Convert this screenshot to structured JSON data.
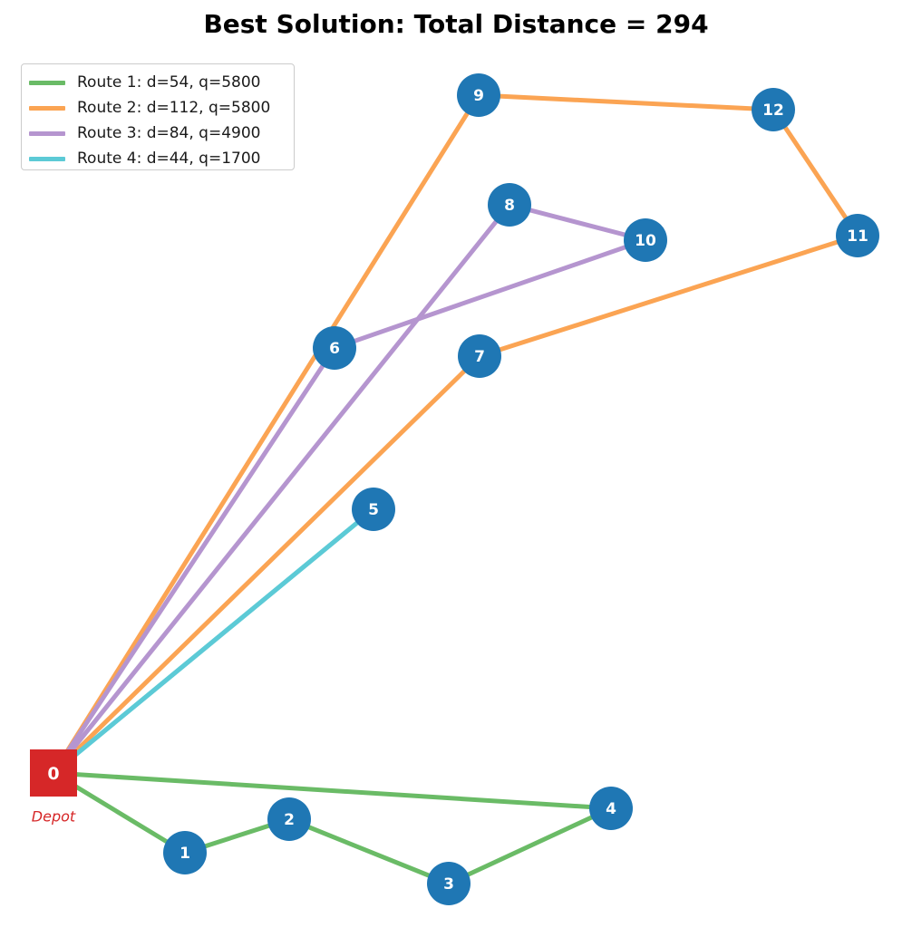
{
  "title": "Best Solution: Total Distance = 294",
  "depot": {
    "id": "0",
    "caption": "Depot",
    "color": "#d62728"
  },
  "node_color": "#1f77b4",
  "nodes": [
    {
      "id": "1"
    },
    {
      "id": "2"
    },
    {
      "id": "3"
    },
    {
      "id": "4"
    },
    {
      "id": "5"
    },
    {
      "id": "6"
    },
    {
      "id": "7"
    },
    {
      "id": "8"
    },
    {
      "id": "9"
    },
    {
      "id": "10"
    },
    {
      "id": "11"
    },
    {
      "id": "12"
    }
  ],
  "routes": [
    {
      "label": "Route 1: d=54, q=5800",
      "color": "#6abb66",
      "path": [
        "0",
        "1",
        "2",
        "3",
        "4",
        "0"
      ]
    },
    {
      "label": "Route 2: d=112, q=5800",
      "color": "#fba453",
      "path": [
        "0",
        "9",
        "12",
        "11",
        "7",
        "0"
      ]
    },
    {
      "label": "Route 3: d=84, q=4900",
      "color": "#b595cf",
      "path": [
        "0",
        "8",
        "10",
        "6",
        "0"
      ]
    },
    {
      "label": "Route 4: d=44, q=1700",
      "color": "#5ccad6",
      "path": [
        "0",
        "5",
        "0"
      ]
    }
  ]
}
